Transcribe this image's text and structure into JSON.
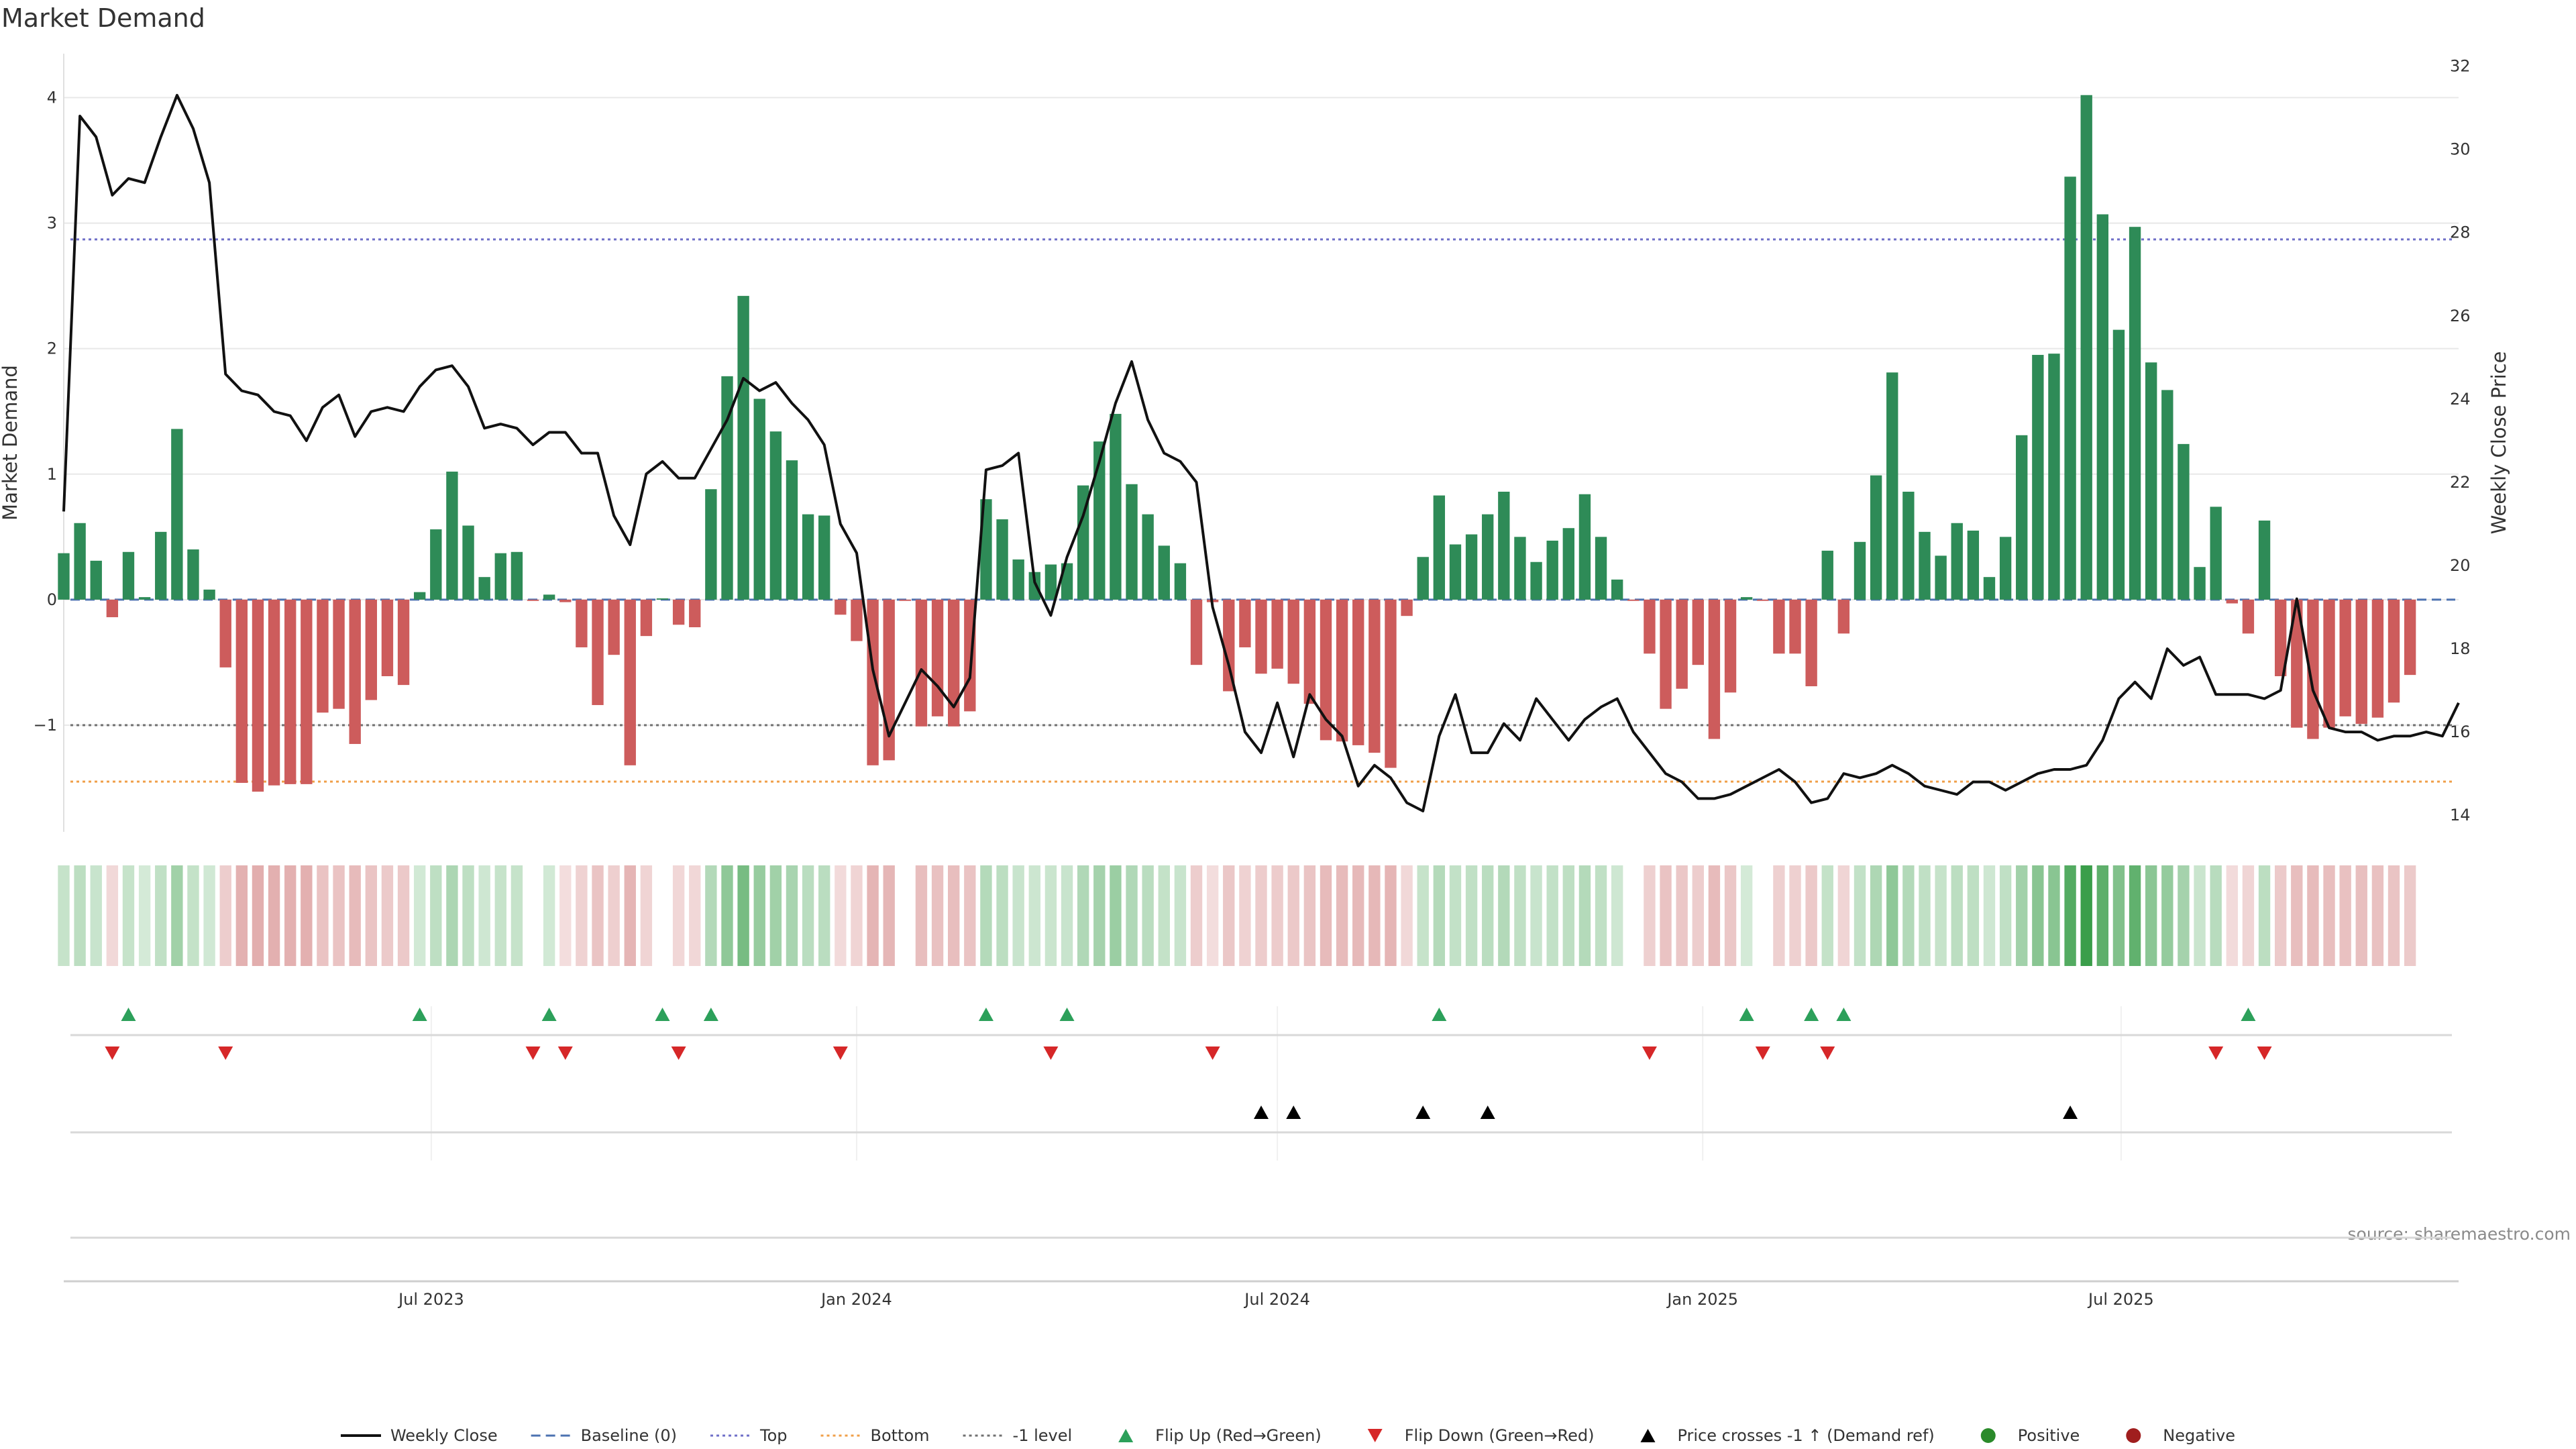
{
  "title": "Market Demand",
  "source": "source: sharemaestro.com",
  "chart_data": {
    "type": "bar",
    "title": "Market Demand",
    "ylabel": "Market Demand",
    "y2label": "Weekly Close Price",
    "ylim": [
      -1.85,
      4.35
    ],
    "y2lim": [
      13.6,
      32.3
    ],
    "yticks": [
      -1,
      0,
      1,
      2,
      3,
      4
    ],
    "y2ticks": [
      14,
      16,
      18,
      20,
      22,
      24,
      26,
      28,
      30,
      32
    ],
    "xlim": [
      "2023-01-23",
      "2025-11-24"
    ],
    "xticks": [
      {
        "date": "2023-07-01",
        "label": "Jul 2023"
      },
      {
        "date": "2024-01-01",
        "label": "Jan 2024"
      },
      {
        "date": "2024-07-01",
        "label": "Jul 2024"
      },
      {
        "date": "2025-01-01",
        "label": "Jan 2025"
      },
      {
        "date": "2025-07-01",
        "label": "Jul 2025"
      }
    ],
    "first_week": "2023-01-23",
    "week_step_days": 7,
    "demand": [
      0.37,
      0.61,
      0.31,
      -0.14,
      0.38,
      0.02,
      0.54,
      1.36,
      0.4,
      0.08,
      -0.54,
      -1.46,
      -1.53,
      -1.48,
      -1.47,
      -1.47,
      -0.9,
      -0.87,
      -1.15,
      -0.8,
      -0.61,
      -0.68,
      0.06,
      0.56,
      1.02,
      0.59,
      0.18,
      0.37,
      0.38,
      -0.01,
      0.04,
      -0.02,
      -0.38,
      -0.84,
      -0.44,
      -1.32,
      -0.29,
      0.01,
      -0.2,
      -0.22,
      0.88,
      1.78,
      2.42,
      1.6,
      1.34,
      1.11,
      0.68,
      0.67,
      -0.12,
      -0.33,
      -1.32,
      -1.28,
      -0.01,
      -1.01,
      -0.93,
      -1.01,
      -0.89,
      0.8,
      0.64,
      0.32,
      0.22,
      0.28,
      0.29,
      0.91,
      1.26,
      1.48,
      0.92,
      0.68,
      0.43,
      0.29,
      -0.52,
      -0.02,
      -0.73,
      -0.38,
      -0.59,
      -0.55,
      -0.67,
      -0.83,
      -1.12,
      -1.13,
      -1.16,
      -1.22,
      -1.34,
      -0.13,
      0.34,
      0.83,
      0.44,
      0.52,
      0.68,
      0.86,
      0.5,
      0.3,
      0.47,
      0.57,
      0.84,
      0.5,
      0.16,
      -0.01,
      -0.43,
      -0.87,
      -0.71,
      -0.52,
      -1.11,
      -0.74,
      0.02,
      -0.01,
      -0.43,
      -0.43,
      -0.69,
      0.39,
      -0.27,
      0.46,
      0.99,
      1.81,
      0.86,
      0.54,
      0.35,
      0.61,
      0.55,
      0.18,
      0.5,
      1.31,
      1.95,
      1.96,
      3.37,
      4.02,
      3.07,
      2.15,
      2.97,
      1.89,
      1.67,
      1.24,
      0.26,
      0.74,
      -0.03,
      -0.27,
      0.63,
      -0.61,
      -1.02,
      -1.11,
      -1.02,
      -0.93,
      -0.99,
      -0.94,
      -0.82,
      -0.6
    ],
    "close": [
      21.3,
      30.8,
      30.3,
      28.9,
      29.3,
      29.2,
      30.3,
      31.3,
      30.5,
      29.2,
      24.6,
      24.2,
      24.1,
      23.7,
      23.6,
      23.0,
      23.8,
      24.1,
      23.1,
      23.7,
      23.8,
      23.7,
      24.3,
      24.7,
      24.8,
      24.3,
      23.3,
      23.4,
      23.3,
      22.9,
      23.2,
      23.2,
      22.7,
      22.7,
      21.2,
      20.5,
      22.2,
      22.5,
      22.1,
      22.1,
      22.8,
      23.5,
      24.5,
      24.2,
      24.4,
      23.9,
      23.5,
      22.9,
      21.0,
      20.3,
      17.5,
      15.9,
      16.7,
      17.5,
      17.1,
      16.6,
      17.3,
      22.3,
      22.4,
      22.7,
      19.6,
      18.8,
      20.2,
      21.2,
      22.5,
      23.9,
      24.9,
      23.5,
      22.7,
      22.5,
      22.0,
      19.0,
      17.6,
      16.0,
      15.5,
      16.7,
      15.4,
      16.9,
      16.3,
      15.9,
      14.7,
      15.2,
      14.9,
      14.3,
      14.1,
      15.9,
      16.9,
      15.5,
      15.5,
      16.2,
      15.8,
      16.8,
      16.3,
      15.8,
      16.3,
      16.6,
      16.8,
      16.0,
      15.5,
      15.0,
      14.8,
      14.4,
      14.4,
      14.5,
      14.7,
      14.9,
      15.1,
      14.8,
      14.3,
      14.4,
      15.0,
      14.9,
      15.0,
      15.2,
      15.0,
      14.7,
      14.6,
      14.5,
      14.8,
      14.8,
      14.6,
      14.8,
      15.0,
      15.1,
      15.1,
      15.2,
      15.8,
      16.8,
      17.2,
      16.8,
      18.0,
      17.6,
      17.8,
      16.9,
      16.9,
      16.9,
      16.8,
      17.0,
      19.2,
      17.0,
      16.1,
      16.0,
      16.0,
      15.8,
      15.9,
      15.9,
      16.0,
      15.9,
      16.7
    ],
    "levels": {
      "top": 2.87,
      "bottom": -1.45,
      "minus_one": -1.0,
      "baseline": 0
    },
    "flip_up_idx": [
      4,
      22,
      30,
      37,
      40,
      57,
      62,
      85,
      104,
      108,
      110,
      135
    ],
    "flip_down_idx": [
      3,
      10,
      29,
      31,
      38,
      48,
      61,
      71,
      98,
      105,
      109,
      133,
      136
    ],
    "price_cross_idx": [
      74,
      76,
      84,
      88,
      124
    ],
    "legend": [
      {
        "label": "Weekly Close",
        "kind": "line",
        "color": "#111111"
      },
      {
        "label": "Baseline (0)",
        "kind": "dash",
        "color": "#4c72b0"
      },
      {
        "label": "Top",
        "kind": "dot",
        "color": "#6f6fc8"
      },
      {
        "label": "Bottom",
        "kind": "dot",
        "color": "#f0a04a"
      },
      {
        "label": "-1 level",
        "kind": "dot",
        "color": "#707070"
      },
      {
        "label": "Flip Up (Red→Green)",
        "kind": "tri-up",
        "color": "#2ca05a"
      },
      {
        "label": "Flip Down (Green→Red)",
        "kind": "tri-down",
        "color": "#d62728"
      },
      {
        "label": "Price crosses -1 ↑ (Demand ref)",
        "kind": "tri-up",
        "color": "#000000"
      },
      {
        "label": "Positive",
        "kind": "circle",
        "color": "#2a8a2a"
      },
      {
        "label": "Negative",
        "kind": "circle",
        "color": "#a01e1e"
      }
    ],
    "colors": {
      "positive": "#2e8b57",
      "negative": "#cd5c5c",
      "line": "#111111",
      "grid": "#e8e8e8",
      "heat_pos": "#3a9e4a",
      "heat_neg": "#c86464"
    }
  }
}
